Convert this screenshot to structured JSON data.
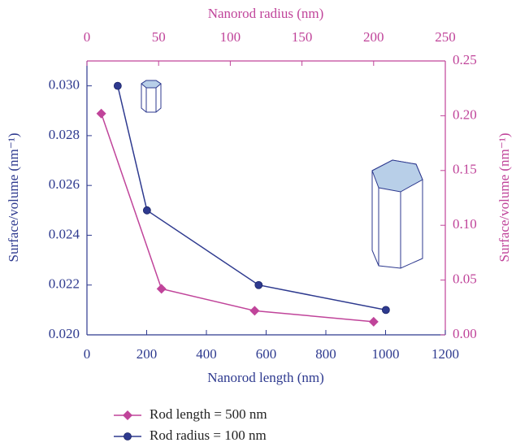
{
  "chart_data": {
    "type": "line",
    "x_label": "Nanorod length (nm)",
    "x2_label": "Nanorod radius (nm)",
    "y_label": "Surface/volume (nm⁻¹)",
    "y2_label": "Surface/volume (nm⁻¹)",
    "xlim": [
      0,
      1200
    ],
    "xticks": [
      0,
      200,
      400,
      600,
      800,
      1000,
      1200
    ],
    "x2lim": [
      0,
      250
    ],
    "x2ticks": [
      0,
      50,
      100,
      150,
      200,
      250
    ],
    "ylim": [
      0.02,
      0.031
    ],
    "yticks": [
      {
        "value": 0.02,
        "label": "0.020"
      },
      {
        "value": 0.022,
        "label": "0.022"
      },
      {
        "value": 0.024,
        "label": "0.024"
      },
      {
        "value": 0.026,
        "label": "0.026"
      },
      {
        "value": 0.028,
        "label": "0.028"
      },
      {
        "value": 0.03,
        "label": "0.030"
      }
    ],
    "y2lim": [
      0,
      0.25
    ],
    "y2ticks": [
      {
        "value": 0,
        "label": "0.00"
      },
      {
        "value": 0.05,
        "label": "0.05"
      },
      {
        "value": 0.1,
        "label": "0.10"
      },
      {
        "value": 0.15,
        "label": "0.15"
      },
      {
        "value": 0.2,
        "label": "0.20"
      },
      0.25
    ],
    "x_color": "#2e3a8f",
    "x2_color": "#c0449a",
    "series": [
      {
        "name": "Rod length = 500 nm",
        "color": "#c0449a",
        "marker": "diamond",
        "axis": "y2",
        "xaxis": "x2",
        "x": [
          10,
          52,
          117,
          200
        ],
        "values": [
          0.202,
          0.042,
          0.022,
          0.012
        ]
      },
      {
        "name": "Rod radius = 100 nm",
        "color": "#2e3a8f",
        "marker": "circle",
        "x": [
          103,
          201,
          575,
          1001
        ],
        "values": [
          0.03,
          0.025,
          0.022,
          0.021
        ]
      }
    ]
  }
}
